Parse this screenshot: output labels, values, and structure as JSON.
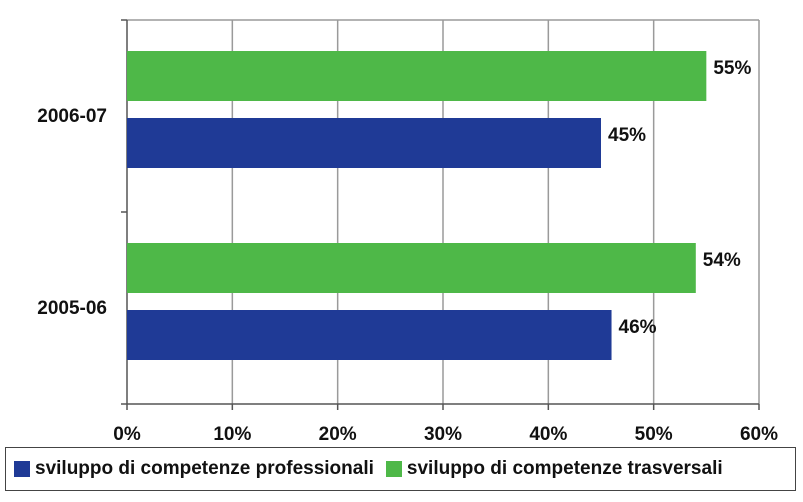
{
  "chart_data": {
    "type": "bar",
    "orientation": "horizontal",
    "categories": [
      "2006-07",
      "2005-06"
    ],
    "series": [
      {
        "name": "sviluppo di competenze trasversali",
        "values": [
          55,
          54
        ],
        "labels": [
          "55%",
          "54%"
        ],
        "color": "#4eb848"
      },
      {
        "name": "sviluppo di competenze professionali",
        "values": [
          45,
          46
        ],
        "labels": [
          "45%",
          "46%"
        ],
        "color": "#1f3a96"
      }
    ],
    "xlim": [
      0,
      60
    ],
    "xticks": [
      0,
      10,
      20,
      30,
      40,
      50,
      60
    ],
    "xtick_labels": [
      "0%",
      "10%",
      "20%",
      "30%",
      "40%",
      "50%",
      "60%"
    ],
    "grid": true,
    "legend_position": "bottom",
    "legend": [
      {
        "name": "sviluppo di competenze professionali",
        "color": "#1f3a96"
      },
      {
        "name": "sviluppo di competenze trasversali",
        "color": "#4eb848"
      }
    ]
  }
}
